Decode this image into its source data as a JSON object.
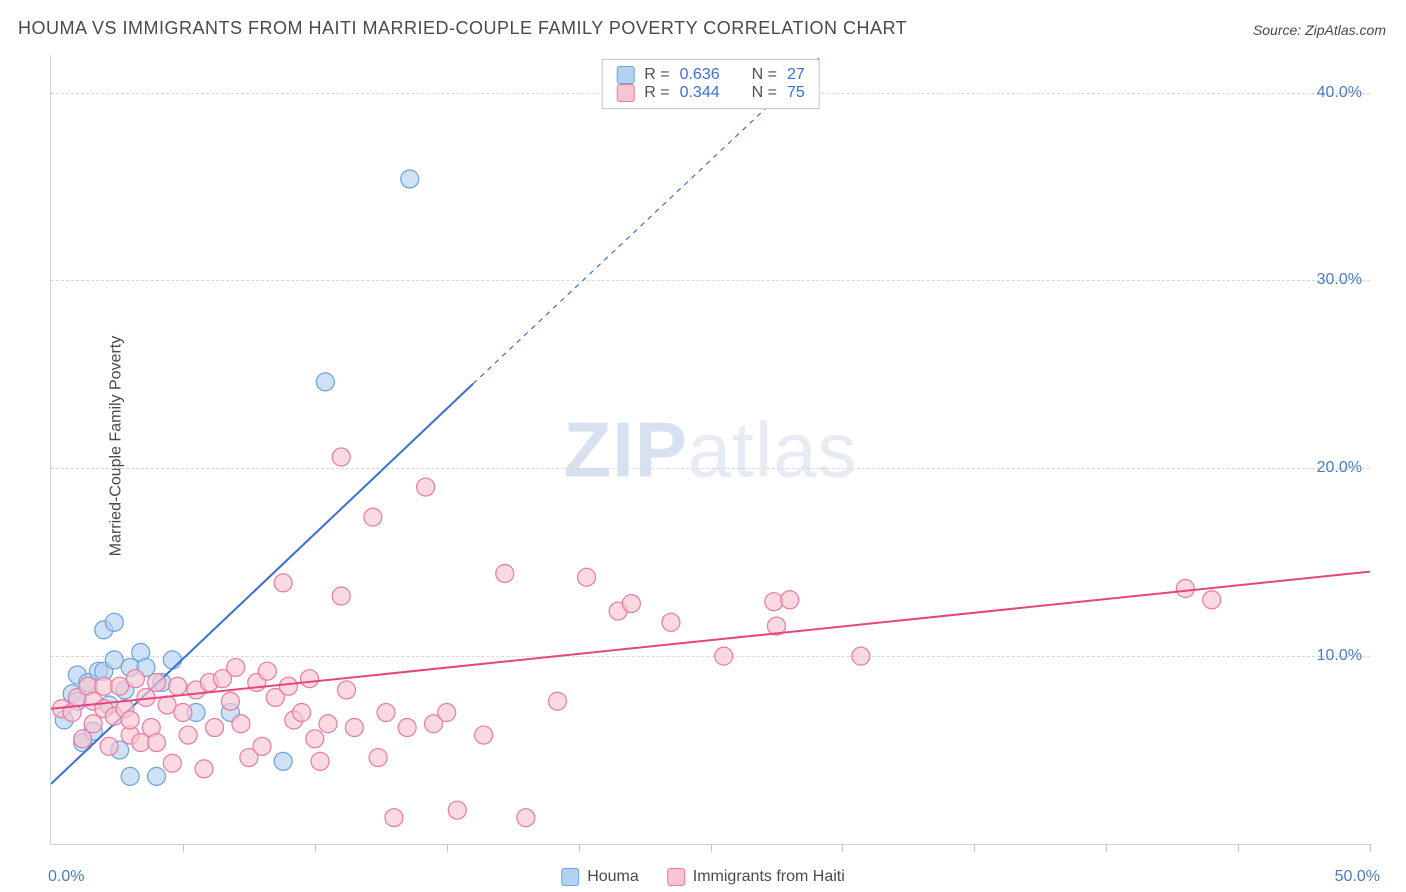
{
  "title": "HOUMA VS IMMIGRANTS FROM HAITI MARRIED-COUPLE FAMILY POVERTY CORRELATION CHART",
  "source_label": "Source: ZipAtlas.com",
  "y_axis_label": "Married-Couple Family Poverty",
  "watermark_a": "ZIP",
  "watermark_b": "atlas",
  "chart": {
    "type": "scatter",
    "xlim": [
      0,
      50
    ],
    "ylim": [
      0,
      42
    ],
    "xtick_positions": [
      0,
      5,
      10,
      15,
      20,
      25,
      30,
      35,
      40,
      45,
      50
    ],
    "xtick_label_left": "0.0%",
    "xtick_label_right": "50.0%",
    "ytick_labels": [
      {
        "v": 10,
        "t": "10.0%"
      },
      {
        "v": 20,
        "t": "20.0%"
      },
      {
        "v": 30,
        "t": "30.0%"
      },
      {
        "v": 40,
        "t": "40.0%"
      }
    ],
    "grid_color": "#d8d8d8",
    "background_color": "#ffffff",
    "marker_radius": 9,
    "marker_stroke_width": 1.2,
    "line_width": 2,
    "series": [
      {
        "key": "houma",
        "label": "Houma",
        "fill": "#b3d1f0",
        "stroke": "#6aa3e0",
        "line_color": "#3b6fd6",
        "r_label": "R =",
        "r_value": "0.636",
        "n_label": "N =",
        "n_value": "27",
        "trend": {
          "x1": 0,
          "y1": 3.2,
          "x2": 16,
          "y2": 24.5,
          "dash_to_x": 30,
          "dash_to_y": 43
        },
        "points": [
          [
            0.5,
            6.6
          ],
          [
            0.8,
            8.0
          ],
          [
            1.0,
            7.6
          ],
          [
            1.0,
            9.0
          ],
          [
            1.2,
            5.4
          ],
          [
            1.4,
            8.6
          ],
          [
            1.6,
            6.0
          ],
          [
            1.8,
            9.2
          ],
          [
            2.0,
            9.2
          ],
          [
            2.0,
            11.4
          ],
          [
            2.2,
            7.4
          ],
          [
            2.4,
            9.8
          ],
          [
            2.4,
            11.8
          ],
          [
            2.6,
            5.0
          ],
          [
            2.8,
            8.2
          ],
          [
            3.0,
            9.4
          ],
          [
            3.0,
            3.6
          ],
          [
            3.4,
            10.2
          ],
          [
            3.6,
            9.4
          ],
          [
            4.0,
            3.6
          ],
          [
            4.2,
            8.6
          ],
          [
            4.6,
            9.8
          ],
          [
            5.5,
            7.0
          ],
          [
            6.8,
            7.0
          ],
          [
            8.8,
            4.4
          ],
          [
            10.4,
            24.6
          ],
          [
            13.6,
            35.4
          ]
        ]
      },
      {
        "key": "haiti",
        "label": "Immigrants from Haiti",
        "fill": "#f7c5d1",
        "stroke": "#ea7aa0",
        "line_color": "#e6457e",
        "r_label": "R =",
        "r_value": "0.344",
        "n_label": "N =",
        "n_value": "75",
        "trend": {
          "x1": 0,
          "y1": 7.2,
          "x2": 50,
          "y2": 14.5
        },
        "points": [
          [
            0.4,
            7.2
          ],
          [
            0.8,
            7.0
          ],
          [
            1.0,
            7.8
          ],
          [
            1.2,
            5.6
          ],
          [
            1.4,
            8.4
          ],
          [
            1.6,
            6.4
          ],
          [
            1.6,
            7.6
          ],
          [
            2.0,
            7.2
          ],
          [
            2.0,
            8.4
          ],
          [
            2.2,
            5.2
          ],
          [
            2.4,
            6.8
          ],
          [
            2.6,
            8.4
          ],
          [
            2.8,
            7.2
          ],
          [
            3.0,
            5.8
          ],
          [
            3.0,
            6.6
          ],
          [
            3.2,
            8.8
          ],
          [
            3.4,
            5.4
          ],
          [
            3.6,
            7.8
          ],
          [
            3.8,
            6.2
          ],
          [
            4.0,
            5.4
          ],
          [
            4.0,
            8.6
          ],
          [
            4.4,
            7.4
          ],
          [
            4.6,
            4.3
          ],
          [
            4.8,
            8.4
          ],
          [
            5.0,
            7.0
          ],
          [
            5.2,
            5.8
          ],
          [
            5.5,
            8.2
          ],
          [
            5.8,
            4.0
          ],
          [
            6.0,
            8.6
          ],
          [
            6.2,
            6.2
          ],
          [
            6.5,
            8.8
          ],
          [
            6.8,
            7.6
          ],
          [
            7.0,
            9.4
          ],
          [
            7.2,
            6.4
          ],
          [
            7.5,
            4.6
          ],
          [
            7.8,
            8.6
          ],
          [
            8.0,
            5.2
          ],
          [
            8.2,
            9.2
          ],
          [
            8.5,
            7.8
          ],
          [
            8.8,
            13.9
          ],
          [
            9.0,
            8.4
          ],
          [
            9.2,
            6.6
          ],
          [
            9.5,
            7.0
          ],
          [
            9.8,
            8.8
          ],
          [
            10.0,
            5.6
          ],
          [
            10.2,
            4.4
          ],
          [
            10.5,
            6.4
          ],
          [
            11.0,
            13.2
          ],
          [
            11.0,
            20.6
          ],
          [
            11.2,
            8.2
          ],
          [
            11.5,
            6.2
          ],
          [
            12.2,
            17.4
          ],
          [
            12.4,
            4.6
          ],
          [
            12.7,
            7.0
          ],
          [
            13.0,
            1.4
          ],
          [
            13.5,
            6.2
          ],
          [
            14.2,
            19.0
          ],
          [
            14.5,
            6.4
          ],
          [
            15.0,
            7.0
          ],
          [
            15.4,
            1.8
          ],
          [
            16.4,
            5.8
          ],
          [
            17.2,
            14.4
          ],
          [
            18.0,
            1.4
          ],
          [
            19.2,
            7.6
          ],
          [
            20.3,
            14.2
          ],
          [
            21.5,
            12.4
          ],
          [
            22.0,
            12.8
          ],
          [
            23.5,
            11.8
          ],
          [
            25.5,
            10.0
          ],
          [
            27.4,
            12.9
          ],
          [
            27.5,
            11.6
          ],
          [
            28.0,
            13.0
          ],
          [
            30.7,
            10.0
          ],
          [
            43.0,
            13.6
          ],
          [
            44.0,
            13.0
          ]
        ]
      }
    ]
  },
  "legend_bottom": [
    {
      "swatch": "blue",
      "label": "Houma"
    },
    {
      "swatch": "pink",
      "label": "Immigrants from Haiti"
    }
  ],
  "tick_color": "#4a7bc8"
}
